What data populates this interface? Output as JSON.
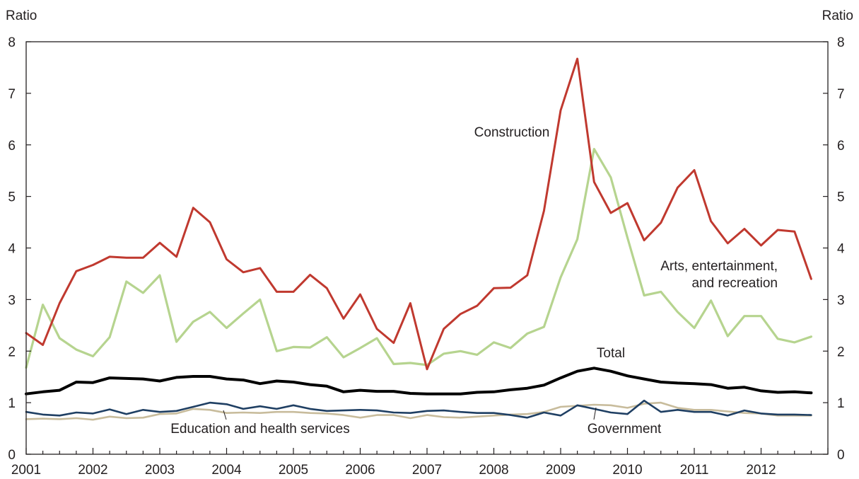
{
  "chart_data": {
    "type": "line",
    "x_start": 2001.0,
    "x_step": 0.25,
    "xlim": [
      2001,
      2013
    ],
    "ylim": [
      0,
      8
    ],
    "x_ticks": [
      "2001",
      "2002",
      "2003",
      "2004",
      "2005",
      "2006",
      "2007",
      "2008",
      "2009",
      "2010",
      "2011",
      "2012"
    ],
    "y_ticks": [
      "0",
      "1",
      "2",
      "3",
      "4",
      "5",
      "6",
      "7",
      "8"
    ],
    "left_axis_label": "Ratio",
    "right_axis_label": "Ratio",
    "grid": false,
    "series": [
      {
        "name": "Construction",
        "color": "#c0392f",
        "label_lines": [
          "Construction"
        ],
        "values": [
          2.35,
          2.12,
          2.93,
          3.55,
          3.67,
          3.83,
          3.81,
          3.81,
          4.1,
          3.83,
          4.78,
          4.5,
          3.78,
          3.53,
          3.61,
          3.15,
          3.15,
          3.48,
          3.22,
          2.63,
          3.1,
          2.43,
          2.16,
          2.93,
          1.65,
          2.43,
          2.72,
          2.88,
          3.22,
          3.23,
          3.47,
          4.72,
          6.67,
          7.67,
          5.28,
          4.68,
          4.87,
          4.15,
          4.49,
          5.17,
          5.51,
          4.52,
          4.09,
          4.37,
          4.05,
          4.35,
          4.32,
          3.4
        ]
      },
      {
        "name": "Arts, entertainment, and recreation",
        "color": "#b6d48f",
        "label_lines": [
          "Arts, entertainment,",
          "and recreation"
        ],
        "values": [
          1.68,
          2.9,
          2.25,
          2.03,
          1.9,
          2.27,
          3.35,
          3.13,
          3.47,
          2.18,
          2.57,
          2.76,
          2.45,
          2.73,
          3.0,
          2.0,
          2.08,
          2.07,
          2.27,
          1.88,
          2.06,
          2.25,
          1.75,
          1.77,
          1.73,
          1.95,
          2.0,
          1.93,
          2.17,
          2.06,
          2.34,
          2.47,
          3.43,
          4.17,
          5.92,
          5.37,
          4.2,
          3.08,
          3.15,
          2.76,
          2.45,
          2.98,
          2.29,
          2.68,
          2.68,
          2.24,
          2.17,
          2.28
        ]
      },
      {
        "name": "Total",
        "color": "#000000",
        "label_lines": [
          "Total"
        ],
        "values": [
          1.17,
          1.21,
          1.24,
          1.4,
          1.39,
          1.48,
          1.47,
          1.46,
          1.42,
          1.49,
          1.51,
          1.51,
          1.46,
          1.44,
          1.37,
          1.42,
          1.4,
          1.35,
          1.32,
          1.21,
          1.24,
          1.22,
          1.22,
          1.18,
          1.17,
          1.17,
          1.17,
          1.2,
          1.21,
          1.25,
          1.28,
          1.34,
          1.48,
          1.61,
          1.67,
          1.61,
          1.52,
          1.46,
          1.4,
          1.38,
          1.37,
          1.35,
          1.28,
          1.3,
          1.23,
          1.2,
          1.21,
          1.19
        ]
      },
      {
        "name": "Education and health services",
        "color": "#1f3f63",
        "label_lines": [
          "Education and health services"
        ],
        "values": [
          0.82,
          0.77,
          0.75,
          0.81,
          0.79,
          0.87,
          0.78,
          0.86,
          0.82,
          0.84,
          0.92,
          1.0,
          0.97,
          0.88,
          0.93,
          0.88,
          0.95,
          0.88,
          0.84,
          0.85,
          0.86,
          0.85,
          0.81,
          0.8,
          0.84,
          0.85,
          0.82,
          0.8,
          0.8,
          0.76,
          0.71,
          0.81,
          0.75,
          0.95,
          0.88,
          0.81,
          0.78,
          1.04,
          0.82,
          0.86,
          0.82,
          0.82,
          0.75,
          0.85,
          0.79,
          0.77,
          0.77,
          0.76
        ]
      },
      {
        "name": "Government",
        "color": "#c8bc9c",
        "label_lines": [
          "Government"
        ],
        "values": [
          0.68,
          0.69,
          0.68,
          0.7,
          0.67,
          0.73,
          0.7,
          0.71,
          0.78,
          0.79,
          0.88,
          0.86,
          0.8,
          0.81,
          0.8,
          0.82,
          0.82,
          0.8,
          0.79,
          0.76,
          0.71,
          0.76,
          0.76,
          0.7,
          0.76,
          0.72,
          0.71,
          0.73,
          0.75,
          0.77,
          0.78,
          0.82,
          0.92,
          0.94,
          0.96,
          0.95,
          0.9,
          0.98,
          1.0,
          0.9,
          0.86,
          0.86,
          0.83,
          0.8,
          0.79,
          0.75,
          0.75,
          0.75
        ]
      }
    ]
  }
}
